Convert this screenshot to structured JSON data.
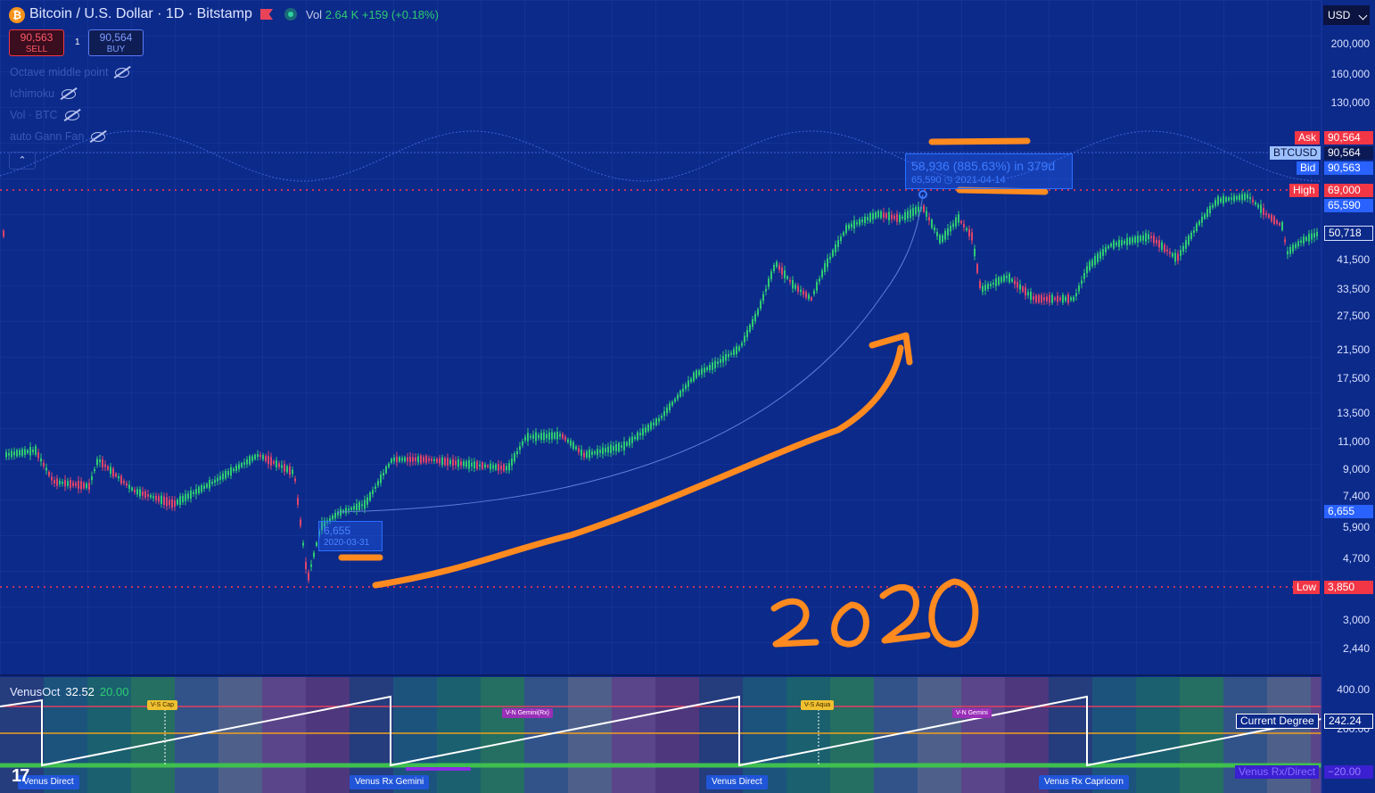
{
  "header": {
    "title": "Bitcoin / U.S. Dollar · 1D · Bitstamp",
    "coin_symbol": "₿",
    "vol_label": "Vol",
    "vol_value": "2.64 K",
    "vol_change": "+159 (+0.18%)"
  },
  "trade": {
    "sell_price": "90,563",
    "sell_label": "SELL",
    "quantity": "1",
    "buy_price": "90,564",
    "buy_label": "BUY"
  },
  "indicators": [
    {
      "name": "Octave middle point"
    },
    {
      "name": "Ichimoku"
    },
    {
      "name": "Vol · BTC"
    },
    {
      "name": "auto Gann Fan"
    }
  ],
  "collapse_glyph": "⌃",
  "currency_select": "USD",
  "price_axis": {
    "ticks": [
      "200,000",
      "160,000",
      "130,000",
      "41,500",
      "33,500",
      "27,500",
      "21,500",
      "17,500",
      "13,500",
      "11,000",
      "9,000",
      "7,400",
      "5,900",
      "4,700",
      "3,000",
      "2,440"
    ],
    "labels": {
      "ask_label": "Ask",
      "ask_value": "90,564",
      "symbol_label": "BTCUSD",
      "symbol_value": "90,564",
      "bid_label": "Bid",
      "bid_value": "90,563",
      "high_label": "High",
      "high_value": "69,000",
      "peak_value": "65,590",
      "cursor_value": "50,718",
      "entry_value": "6,655",
      "low_label": "Low",
      "low_value": "3,850"
    }
  },
  "measure": {
    "line1": "58,936 (885.63%) in 379d",
    "line2_price": "65,590",
    "line2_date": "2021-04-14"
  },
  "low_box": {
    "price": "6,655",
    "date": "2020-03-31"
  },
  "annotation": {
    "text": "2020"
  },
  "venus_panel": {
    "title": "VenusOct",
    "value1": "32.52",
    "value2": "20.00",
    "axis_ticks": [
      "400.00",
      "200.00"
    ],
    "current_degree_label": "Current Degree",
    "current_degree_value": "242.24",
    "rx_direct_label": "Venus Rx/Direct",
    "rx_direct_value": "−20.00",
    "mini_labels": [
      "V-S Cap",
      "V-N Gemini(Rx)",
      "V-S Aqua",
      "V-N Gemini"
    ],
    "events": [
      "Venus Direct",
      "Venus Rx Gemini",
      "Venus Direct",
      "Venus Rx Capricorn"
    ]
  },
  "colors": {
    "background": "#0c2a8a",
    "up": "#2ecc71",
    "down": "#e0456a",
    "orange": "#ff8a1f",
    "high_red": "#f23645",
    "accent_blue": "#2962ff"
  }
}
